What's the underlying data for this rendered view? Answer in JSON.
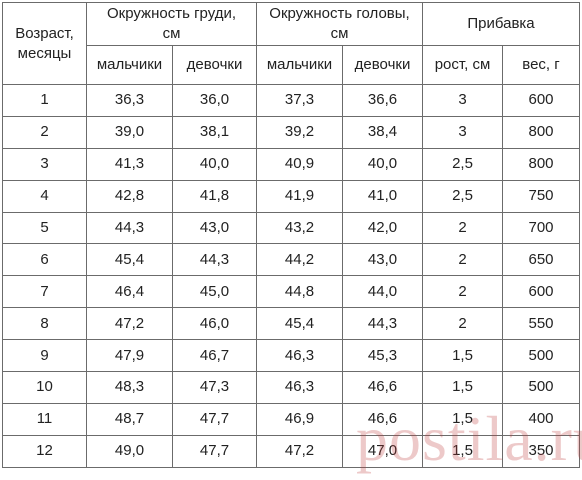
{
  "table": {
    "headers": {
      "age": "Возраст, месяцы",
      "chest": "Окружность груди, см",
      "head": "Окружность головы, см",
      "gain": "Прибавка",
      "boys": "мальчики",
      "girls": "девочки",
      "height": "рост, см",
      "weight": "вес, г"
    },
    "rows": [
      [
        "1",
        "36,3",
        "36,0",
        "37,3",
        "36,6",
        "3",
        "600"
      ],
      [
        "2",
        "39,0",
        "38,1",
        "39,2",
        "38,4",
        "3",
        "800"
      ],
      [
        "3",
        "41,3",
        "40,0",
        "40,9",
        "40,0",
        "2,5",
        "800"
      ],
      [
        "4",
        "42,8",
        "41,8",
        "41,9",
        "41,0",
        "2,5",
        "750"
      ],
      [
        "5",
        "44,3",
        "43,0",
        "43,2",
        "42,0",
        "2",
        "700"
      ],
      [
        "6",
        "45,4",
        "44,3",
        "44,2",
        "43,0",
        "2",
        "650"
      ],
      [
        "7",
        "46,4",
        "45,0",
        "44,8",
        "44,0",
        "2",
        "600"
      ],
      [
        "8",
        "47,2",
        "46,0",
        "45,4",
        "44,3",
        "2",
        "550"
      ],
      [
        "9",
        "47,9",
        "46,7",
        "46,3",
        "45,3",
        "1,5",
        "500"
      ],
      [
        "10",
        "48,3",
        "47,3",
        "46,3",
        "46,6",
        "1,5",
        "500"
      ],
      [
        "11",
        "48,7",
        "47,7",
        "46,9",
        "46,6",
        "1,5",
        "400"
      ],
      [
        "12",
        "49,0",
        "47,7",
        "47,2",
        "47,0",
        "1,5",
        "350"
      ]
    ]
  },
  "watermark": "postila.ru"
}
